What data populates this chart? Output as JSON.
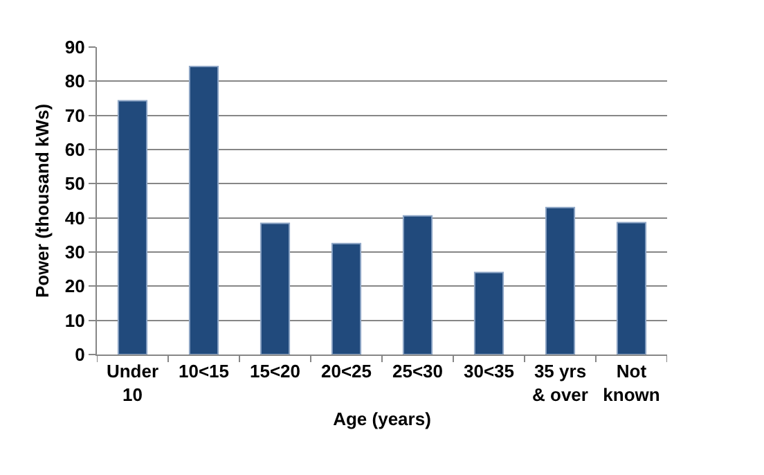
{
  "chart_data": {
    "type": "bar",
    "xlabel": "Age (years)",
    "ylabel": "Power (thousand kWs)",
    "categories": [
      "Under\n10",
      "10<15",
      "15<20",
      "20<25",
      "25<30",
      "30<35",
      "35 yrs\n& over",
      "Not\nknown"
    ],
    "values": [
      74.3,
      84.3,
      38.4,
      32.5,
      40.6,
      24,
      43,
      38.6
    ],
    "color": "#214a7c",
    "ylim": [
      0,
      90
    ],
    "yticks": [
      0,
      10,
      20,
      30,
      40,
      50,
      60,
      70,
      80,
      90
    ],
    "grid": "y",
    "legend": false
  }
}
